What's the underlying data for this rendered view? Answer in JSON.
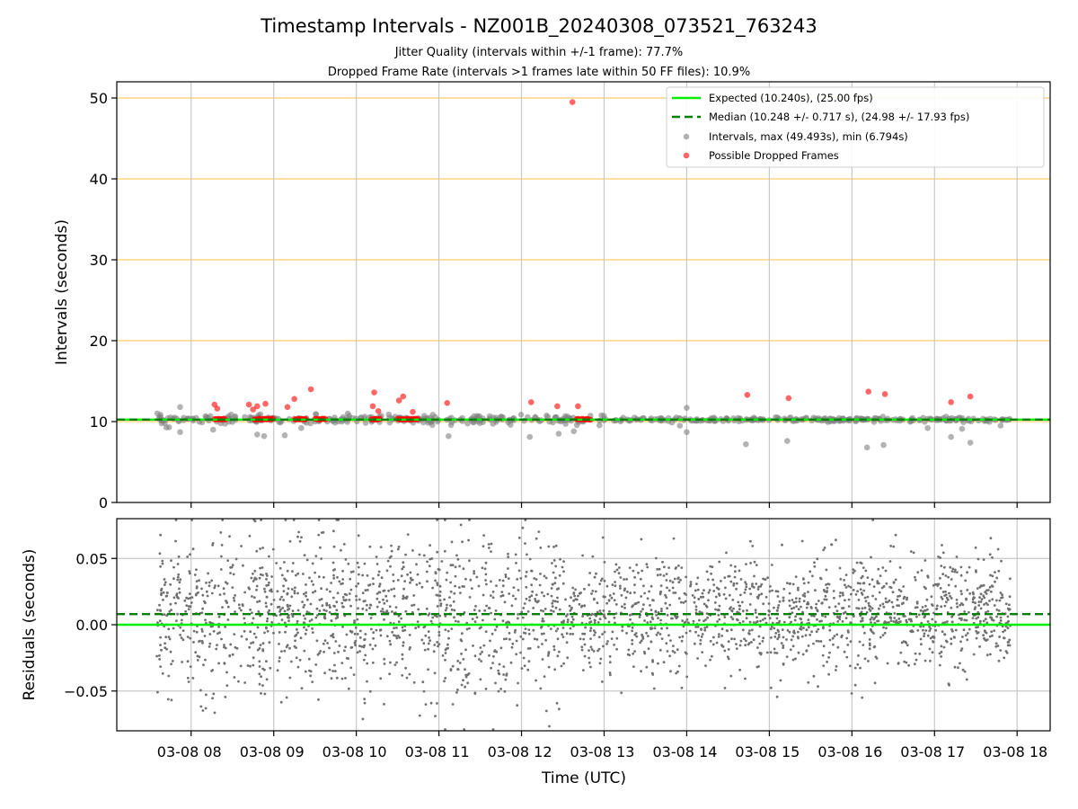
{
  "title": "Timestamp Intervals - NZ001B_20240308_073521_763243",
  "subtitle_1": "Jitter Quality (intervals within +/-1 frame): 77.7%",
  "subtitle_2": "Dropped Frame Rate (intervals >1 frames late within 50 FF files): 10.9%",
  "colors": {
    "expected": "#00ee00",
    "median": "#007f00",
    "intervals": "#808080",
    "dropped": "#ff0000",
    "upper_grid": "#ffcc66",
    "grid": "#c8c8c8",
    "residual_points": "#707070"
  },
  "chart_data": [
    {
      "type": "scatter",
      "panel": "intervals",
      "ylabel": "Intervals (seconds)",
      "ylim": [
        0,
        52
      ],
      "yticks": [
        0,
        10,
        20,
        30,
        40,
        50
      ],
      "xlim": [
        "2024-03-08 07:06",
        "2024-03-08 18:24"
      ],
      "x_ticks": [
        "2024-03-08 08:00",
        "2024-03-08 09:00",
        "2024-03-08 10:00",
        "2024-03-08 11:00",
        "2024-03-08 12:00",
        "2024-03-08 13:00",
        "2024-03-08 14:00",
        "2024-03-08 15:00",
        "2024-03-08 16:00",
        "2024-03-08 17:00",
        "2024-03-08 18:00"
      ],
      "grid": "vertical gray lines at each x tick; orange horizontal lines at 10, 20, 30, 40, 50",
      "reference_lines": {
        "expected": 10.24,
        "median": 10.248
      },
      "legend": {
        "location": "top-right",
        "entries": [
          "Expected (10.240s), (25.00 fps)",
          "Median (10.248 +/- 0.717 s), (24.98 +/- 17.93 fps)",
          "Intervals, max (49.493s), min (6.794s)",
          "Possible Dropped Frames"
        ]
      },
      "series": [
        {
          "name": "Intervals, max (49.493s), min (6.794s)",
          "approximate": "dense band of points near 10.25 s spanning 07:35–17:55 UTC; sparse outliers listed",
          "band": {
            "start": "2024-03-08 07:35",
            "end": "2024-03-08 17:55",
            "center": 10.25
          },
          "outliers": [
            {
              "x": "2024-03-08 07:52",
              "y": 11.8
            },
            {
              "x": "2024-03-08 07:52",
              "y": 8.7
            },
            {
              "x": "2024-03-08 07:44",
              "y": 9.3
            },
            {
              "x": "2024-03-08 08:16",
              "y": 9.0
            },
            {
              "x": "2024-03-08 08:48",
              "y": 8.4
            },
            {
              "x": "2024-03-08 08:53",
              "y": 8.2
            },
            {
              "x": "2024-03-08 09:08",
              "y": 8.3
            },
            {
              "x": "2024-03-08 09:20",
              "y": 9.2
            },
            {
              "x": "2024-03-08 11:07",
              "y": 8.2
            },
            {
              "x": "2024-03-08 11:52",
              "y": 9.6
            },
            {
              "x": "2024-03-08 12:06",
              "y": 8.1
            },
            {
              "x": "2024-03-08 12:27",
              "y": 8.5
            },
            {
              "x": "2024-03-08 12:38",
              "y": 8.8
            },
            {
              "x": "2024-03-08 13:55",
              "y": 9.5
            },
            {
              "x": "2024-03-08 14:00",
              "y": 11.7
            },
            {
              "x": "2024-03-08 14:00",
              "y": 8.7
            },
            {
              "x": "2024-03-08 14:43",
              "y": 7.2
            },
            {
              "x": "2024-03-08 15:13",
              "y": 7.6
            },
            {
              "x": "2024-03-08 16:11",
              "y": 6.8
            },
            {
              "x": "2024-03-08 16:23",
              "y": 7.1
            },
            {
              "x": "2024-03-08 16:55",
              "y": 9.2
            },
            {
              "x": "2024-03-08 17:12",
              "y": 8.1
            },
            {
              "x": "2024-03-08 17:20",
              "y": 9.1
            },
            {
              "x": "2024-03-08 17:26",
              "y": 7.4
            },
            {
              "x": "2024-03-08 17:48",
              "y": 9.5
            }
          ]
        },
        {
          "name": "Possible Dropped Frames",
          "approximate": "clusters of red points at ~10.3 s plus isolated high points",
          "clusters": [
            {
              "start": "2024-03-08 08:17",
              "end": "2024-03-08 08:25",
              "y": 10.3
            },
            {
              "start": "2024-03-08 08:46",
              "end": "2024-03-08 09:00",
              "y": 10.3
            },
            {
              "start": "2024-03-08 09:15",
              "end": "2024-03-08 09:24",
              "y": 10.3
            },
            {
              "start": "2024-03-08 09:30",
              "end": "2024-03-08 09:38",
              "y": 10.3
            },
            {
              "start": "2024-03-08 10:11",
              "end": "2024-03-08 10:18",
              "y": 10.3
            },
            {
              "start": "2024-03-08 10:30",
              "end": "2024-03-08 10:45",
              "y": 10.3
            },
            {
              "start": "2024-03-08 12:40",
              "end": "2024-03-08 12:50",
              "y": 10.3
            }
          ],
          "points": [
            {
              "x": "2024-03-08 08:17",
              "y": 12.1
            },
            {
              "x": "2024-03-08 08:19",
              "y": 11.6
            },
            {
              "x": "2024-03-08 08:42",
              "y": 12.1
            },
            {
              "x": "2024-03-08 08:45",
              "y": 11.5
            },
            {
              "x": "2024-03-08 08:48",
              "y": 11.9
            },
            {
              "x": "2024-03-08 08:54",
              "y": 12.2
            },
            {
              "x": "2024-03-08 09:10",
              "y": 11.8
            },
            {
              "x": "2024-03-08 09:15",
              "y": 12.8
            },
            {
              "x": "2024-03-08 09:27",
              "y": 14.0
            },
            {
              "x": "2024-03-08 10:13",
              "y": 13.6
            },
            {
              "x": "2024-03-08 10:12",
              "y": 11.9
            },
            {
              "x": "2024-03-08 10:16",
              "y": 11.3
            },
            {
              "x": "2024-03-08 10:31",
              "y": 12.6
            },
            {
              "x": "2024-03-08 10:34",
              "y": 13.1
            },
            {
              "x": "2024-03-08 10:41",
              "y": 11.2
            },
            {
              "x": "2024-03-08 11:06",
              "y": 12.3
            },
            {
              "x": "2024-03-08 12:07",
              "y": 12.4
            },
            {
              "x": "2024-03-08 12:26",
              "y": 11.9
            },
            {
              "x": "2024-03-08 12:37",
              "y": 49.49
            },
            {
              "x": "2024-03-08 12:41",
              "y": 11.9
            },
            {
              "x": "2024-03-08 14:44",
              "y": 13.3
            },
            {
              "x": "2024-03-08 15:14",
              "y": 12.9
            },
            {
              "x": "2024-03-08 16:12",
              "y": 13.7
            },
            {
              "x": "2024-03-08 16:24",
              "y": 13.4
            },
            {
              "x": "2024-03-08 17:12",
              "y": 12.4
            },
            {
              "x": "2024-03-08 17:26",
              "y": 13.1
            }
          ]
        }
      ]
    },
    {
      "type": "scatter",
      "panel": "residuals",
      "xlabel": "Time (UTC)",
      "ylabel": "Residuals (seconds)",
      "ylim": [
        -0.08,
        0.08
      ],
      "yticks": [
        -0.05,
        0.0,
        0.05
      ],
      "ytick_labels": [
        "−0.05",
        "0.00",
        "0.05"
      ],
      "xlim": [
        "2024-03-08 07:06",
        "2024-03-08 18:24"
      ],
      "x_ticks": [
        "2024-03-08 08:00",
        "2024-03-08 09:00",
        "2024-03-08 10:00",
        "2024-03-08 11:00",
        "2024-03-08 12:00",
        "2024-03-08 13:00",
        "2024-03-08 14:00",
        "2024-03-08 15:00",
        "2024-03-08 16:00",
        "2024-03-08 17:00",
        "2024-03-08 18:00"
      ],
      "x_tick_labels": [
        "03-08 08",
        "03-08 09",
        "03-08 10",
        "03-08 11",
        "03-08 12",
        "03-08 13",
        "03-08 14",
        "03-08 15",
        "03-08 16",
        "03-08 17",
        "03-08 18"
      ],
      "grid": "gray horizontal and vertical grid lines",
      "reference_lines": {
        "expected": 0.0,
        "median": 0.008
      },
      "series": [
        {
          "name": "Residuals",
          "approximate": "dense scatter of small gray points spanning 07:35–17:55 UTC, roughly centered near 0.008 s with spread of about ±0.04 s (wider early, ~±0.08 s)",
          "extent": {
            "start": "2024-03-08 07:35",
            "end": "2024-03-08 17:55"
          }
        }
      ]
    }
  ]
}
